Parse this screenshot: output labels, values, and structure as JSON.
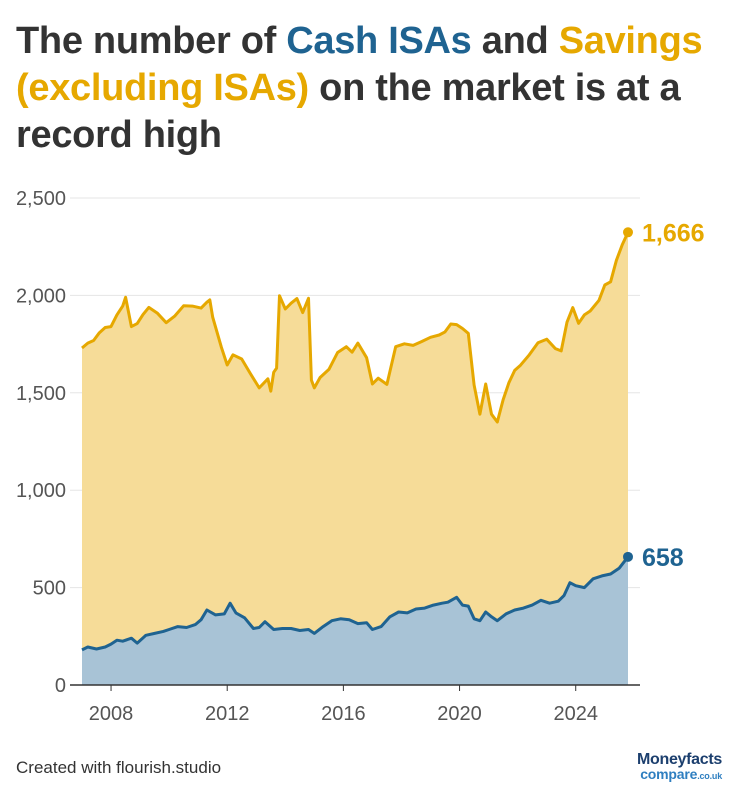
{
  "title": {
    "part1": "The number of ",
    "cash": "Cash ISAs",
    "part2": " and ",
    "savings": "Savings (excluding ISAs)",
    "part3": " on the market is at a record high"
  },
  "footer": "Created with flourish.studio",
  "logo": {
    "line1": "Moneyfacts",
    "line2": "compare",
    "line2_suffix": ".co.uk"
  },
  "colors": {
    "cash_line": "#1f6391",
    "cash_fill": "#a8c3d6",
    "savings_line": "#e6a800",
    "savings_fill": "#f6dc98",
    "grid": "#e5e5e5",
    "axis": "#333333"
  },
  "chart_data": {
    "type": "area",
    "title": "The number of Cash ISAs and Savings (excluding ISAs) on the market is at a record high",
    "xlabel": "",
    "ylabel": "",
    "xlim": [
      2007.0,
      2025.8
    ],
    "ylim": [
      0,
      2500
    ],
    "y_ticks": [
      0,
      500,
      1000,
      1500,
      2000,
      2500
    ],
    "y_tick_labels": [
      "0",
      "500",
      "1,000",
      "1,500",
      "2,000",
      "2,500"
    ],
    "x_ticks": [
      2008,
      2012,
      2016,
      2020,
      2024
    ],
    "x_tick_labels": [
      "2008",
      "2012",
      "2016",
      "2020",
      "2024"
    ],
    "stacked": true,
    "series": [
      {
        "name": "Cash ISAs",
        "end_label": "658",
        "x": [
          2007.0,
          2007.2,
          2007.5,
          2007.8,
          2008.0,
          2008.2,
          2008.4,
          2008.7,
          2008.9,
          2009.2,
          2009.5,
          2009.8,
          2010.0,
          2010.3,
          2010.6,
          2010.9,
          2011.1,
          2011.3,
          2011.6,
          2011.9,
          2012.1,
          2012.3,
          2012.6,
          2012.9,
          2013.1,
          2013.3,
          2013.6,
          2013.9,
          2014.2,
          2014.5,
          2014.8,
          2015.0,
          2015.3,
          2015.6,
          2015.9,
          2016.2,
          2016.5,
          2016.8,
          2017.0,
          2017.3,
          2017.6,
          2017.9,
          2018.2,
          2018.5,
          2018.8,
          2019.1,
          2019.4,
          2019.6,
          2019.9,
          2020.1,
          2020.3,
          2020.5,
          2020.7,
          2020.9,
          2021.1,
          2021.3,
          2021.6,
          2021.9,
          2022.2,
          2022.5,
          2022.8,
          2023.1,
          2023.4,
          2023.6,
          2023.8,
          2024.0,
          2024.3,
          2024.6,
          2024.9,
          2025.2,
          2025.5,
          2025.8
        ],
        "values": [
          180,
          195,
          185,
          195,
          210,
          230,
          225,
          240,
          215,
          255,
          265,
          275,
          285,
          300,
          295,
          310,
          335,
          385,
          360,
          365,
          420,
          370,
          345,
          290,
          295,
          325,
          285,
          290,
          290,
          280,
          285,
          265,
          300,
          330,
          340,
          335,
          315,
          320,
          285,
          300,
          350,
          375,
          370,
          390,
          395,
          410,
          420,
          425,
          450,
          410,
          405,
          340,
          330,
          375,
          350,
          330,
          365,
          385,
          395,
          410,
          435,
          420,
          430,
          460,
          525,
          510,
          500,
          545,
          560,
          570,
          600,
          658
        ]
      },
      {
        "name": "Savings (excluding ISAs)",
        "end_label": "1,666",
        "x": [
          2007.0,
          2007.2,
          2007.4,
          2007.6,
          2007.8,
          2008.0,
          2008.2,
          2008.4,
          2008.5,
          2008.7,
          2008.9,
          2009.1,
          2009.3,
          2009.6,
          2009.9,
          2010.2,
          2010.5,
          2010.8,
          2011.1,
          2011.3,
          2011.4,
          2011.5,
          2011.8,
          2012.0,
          2012.2,
          2012.5,
          2012.8,
          2013.1,
          2013.4,
          2013.5,
          2013.6,
          2013.7,
          2013.8,
          2014.0,
          2014.2,
          2014.4,
          2014.6,
          2014.8,
          2014.9,
          2015.0,
          2015.2,
          2015.5,
          2015.8,
          2016.1,
          2016.3,
          2016.5,
          2016.8,
          2017.0,
          2017.2,
          2017.5,
          2017.8,
          2018.1,
          2018.4,
          2018.7,
          2019.0,
          2019.3,
          2019.5,
          2019.7,
          2019.9,
          2020.1,
          2020.3,
          2020.5,
          2020.7,
          2020.9,
          2021.1,
          2021.3,
          2021.5,
          2021.7,
          2021.9,
          2022.1,
          2022.4,
          2022.7,
          2023.0,
          2023.3,
          2023.5,
          2023.7,
          2023.9,
          2024.1,
          2024.3,
          2024.5,
          2024.8,
          2025.0,
          2025.2,
          2025.4,
          2025.6,
          2025.8
        ],
        "values": [
          1550,
          1560,
          1580,
          1620,
          1640,
          1630,
          1670,
          1720,
          1760,
          1600,
          1640,
          1660,
          1680,
          1640,
          1580,
          1600,
          1650,
          1640,
          1600,
          1580,
          1600,
          1520,
          1370,
          1250,
          1300,
          1320,
          1290,
          1230,
          1260,
          1210,
          1320,
          1340,
          1710,
          1640,
          1670,
          1700,
          1630,
          1700,
          1290,
          1260,
          1290,
          1300,
          1370,
          1400,
          1380,
          1440,
          1360,
          1260,
          1280,
          1210,
          1370,
          1380,
          1360,
          1370,
          1380,
          1380,
          1390,
          1420,
          1400,
          1420,
          1400,
          1200,
          1060,
          1170,
          1040,
          1020,
          1110,
          1180,
          1230,
          1250,
          1290,
          1330,
          1350,
          1300,
          1270,
          1370,
          1420,
          1350,
          1400,
          1390,
          1420,
          1490,
          1500,
          1590,
          1640,
          1666
        ]
      }
    ]
  }
}
